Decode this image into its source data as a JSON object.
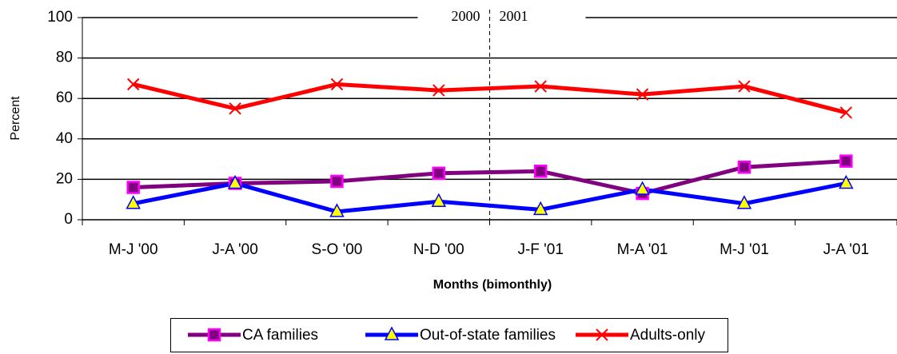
{
  "chart_data": {
    "type": "line",
    "x_label": "Months (bimonthly)",
    "y_label": "Percent",
    "annotations": [
      "2000",
      "2001"
    ],
    "categories": [
      "M-J '00",
      "J-A '00",
      "S-O '00",
      "N-D '00",
      "J-F '01",
      "M-A '01",
      "M-J '01",
      "J-A '01"
    ],
    "series": [
      {
        "name": "CA families",
        "color": "#800080",
        "marker": "square",
        "marker_color": "#ff00ff",
        "values": [
          16,
          18,
          19,
          23,
          24,
          13,
          26,
          29
        ]
      },
      {
        "name": "Out-of-state families",
        "color": "#0000ff",
        "marker": "triangle",
        "marker_color": "#ffff00",
        "values": [
          8,
          18,
          4,
          9,
          5,
          15,
          8,
          18
        ]
      },
      {
        "name": "Adults-only",
        "color": "#ff0000",
        "marker": "x",
        "marker_color": "#ff0000",
        "values": [
          67,
          55,
          67,
          64,
          66,
          62,
          66,
          53
        ]
      }
    ],
    "ylim": [
      0,
      100
    ],
    "yticks": [
      0,
      20,
      40,
      60,
      80,
      100
    ],
    "grid": true,
    "legend": "bottom"
  }
}
